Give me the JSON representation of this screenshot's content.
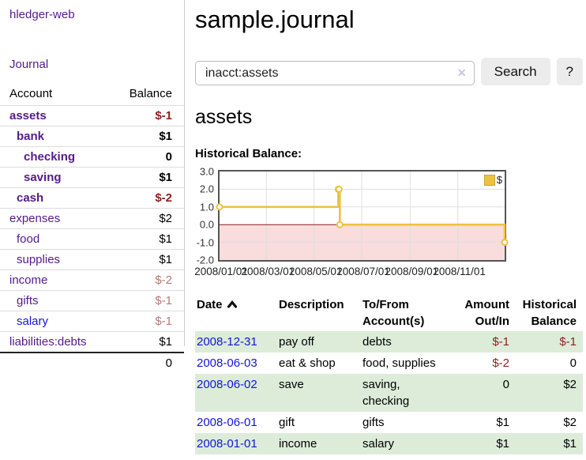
{
  "brand": "hledger-web",
  "colors": {
    "accent_purple": "#551a8b",
    "link_blue": "#1414d6",
    "neg": "#8e1f1f",
    "neg_soft": "#b87878",
    "row_green": "#dcecd9",
    "chart_gold": "#edc240",
    "chart_negative_fill": "#f9dcdc",
    "chart_zero_line": "#8b1a1a"
  },
  "sidebar": {
    "journal_link": "Journal",
    "accounts_header": {
      "account": "Account",
      "balance": "Balance"
    },
    "accounts": [
      {
        "name": "assets",
        "balance": "$-1",
        "level": 0,
        "in_selected_account": true,
        "tone": "neg"
      },
      {
        "name": "bank",
        "balance": "$1",
        "level": 1,
        "in_selected_account": true,
        "tone": null
      },
      {
        "name": "checking",
        "balance": "0",
        "level": 2,
        "in_selected_account": true,
        "tone": null
      },
      {
        "name": "saving",
        "balance": "$1",
        "level": 2,
        "in_selected_account": true,
        "tone": null
      },
      {
        "name": "cash",
        "balance": "$-2",
        "level": 1,
        "in_selected_account": true,
        "tone": "neg"
      },
      {
        "name": "expenses",
        "balance": "$2",
        "level": 0,
        "in_selected_account": false,
        "tone": null
      },
      {
        "name": "food",
        "balance": "$1",
        "level": 1,
        "in_selected_account": false,
        "tone": null
      },
      {
        "name": "supplies",
        "balance": "$1",
        "level": 1,
        "in_selected_account": false,
        "tone": null
      },
      {
        "name": "income",
        "balance": "$-2",
        "level": 0,
        "in_selected_account": false,
        "tone": "neg_soft"
      },
      {
        "name": "gifts",
        "balance": "$-1",
        "level": 1,
        "in_selected_account": false,
        "tone": "neg_soft"
      },
      {
        "name": "salary",
        "balance": "$-1",
        "level": 1,
        "in_selected_account": false,
        "tone": "neg_soft",
        "link_color": "blue"
      },
      {
        "name": "liabilities:debts",
        "balance": "$1",
        "level": 0,
        "in_selected_account": false,
        "tone": null
      }
    ],
    "total": "0"
  },
  "header": {
    "title": "sample.journal"
  },
  "search": {
    "value": "inacct:assets",
    "clear_icon": "✕",
    "button_label": "Search",
    "help_label": "?"
  },
  "account_page": {
    "title": "assets",
    "chart_label": "Historical Balance:"
  },
  "chart_data": {
    "type": "line",
    "style": "step",
    "title": "Historical Balance",
    "series": [
      {
        "name": "$",
        "color": "#edc240",
        "points": [
          [
            "2008-01-01",
            1
          ],
          [
            "2008-06-01",
            2
          ],
          [
            "2008-06-02",
            2
          ],
          [
            "2008-06-03",
            0
          ],
          [
            "2008-12-31",
            -1
          ]
        ]
      }
    ],
    "x_range": [
      "2008-01-01",
      "2008-12-31"
    ],
    "x_ticks": [
      "2008/01/01",
      "2008/03/01",
      "2008/05/01",
      "2008/07/01",
      "2008/09/01",
      "2008/11/01"
    ],
    "y_ticks": [
      3.0,
      2.0,
      1.0,
      0.0,
      -1.0,
      -2.0
    ],
    "ylim": [
      -2,
      3
    ],
    "grid": true,
    "negative_fill": "#f9dcdc",
    "zero_line_color": "#8b1a1a",
    "legend": {
      "label": "$",
      "position": "top-right"
    }
  },
  "register_table": {
    "columns": [
      {
        "label": "Date",
        "align": "left",
        "sorted": true
      },
      {
        "label": "Description",
        "align": "left",
        "sorted": false
      },
      {
        "label": "To/From Account(s)",
        "align": "left",
        "sorted": false
      },
      {
        "label": "Amount Out/In",
        "align": "right",
        "sorted": false
      },
      {
        "label": "Historical Balance",
        "align": "right",
        "sorted": false
      }
    ],
    "rows": [
      {
        "date": "2008-12-31",
        "description": "pay off",
        "accounts": "debts",
        "amount": "$-1",
        "balance": "$-1"
      },
      {
        "date": "2008-06-03",
        "description": "eat & shop",
        "accounts": "food, supplies",
        "amount": "$-2",
        "balance": "0"
      },
      {
        "date": "2008-06-02",
        "description": "save",
        "accounts": "saving, checking",
        "amount": "0",
        "balance": "$2"
      },
      {
        "date": "2008-06-01",
        "description": "gift",
        "accounts": "gifts",
        "amount": "$1",
        "balance": "$2"
      },
      {
        "date": "2008-01-01",
        "description": "income",
        "accounts": "salary",
        "amount": "$1",
        "balance": "$1"
      }
    ]
  }
}
